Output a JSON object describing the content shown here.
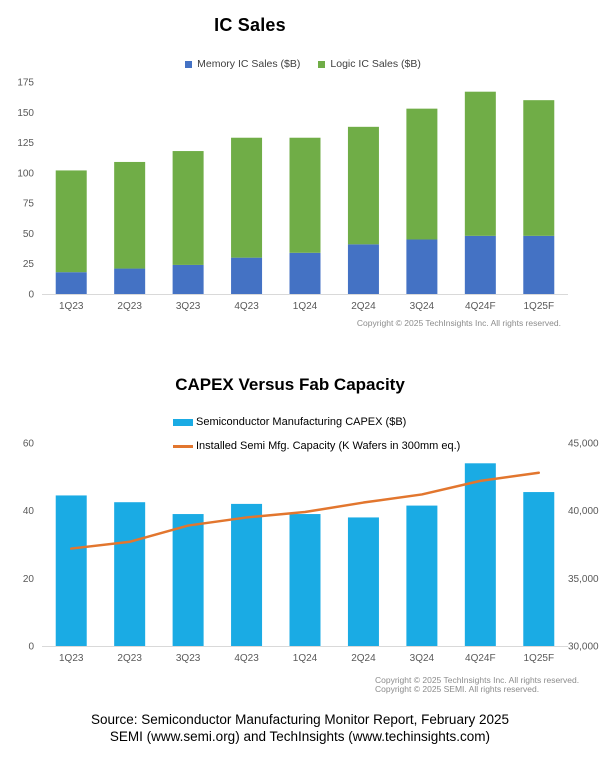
{
  "chart_data": [
    {
      "type": "bar",
      "stacked": true,
      "title": "IC Sales",
      "categories": [
        "1Q23",
        "2Q23",
        "3Q23",
        "4Q23",
        "1Q24",
        "2Q24",
        "3Q24",
        "4Q24F",
        "1Q25F"
      ],
      "series": [
        {
          "key": "memory",
          "name": "Memory IC Sales ($B)",
          "color": "#4472C4",
          "values": [
            18,
            21,
            24,
            30,
            34,
            41,
            45,
            48,
            48
          ]
        },
        {
          "key": "logic",
          "name": "Logic IC Sales ($B)",
          "color": "#70AD47",
          "values": [
            84,
            88,
            94,
            99,
            95,
            97,
            108,
            119,
            112
          ]
        }
      ],
      "xlabel": "",
      "ylabel": "",
      "ylim": [
        0,
        175
      ],
      "yticks": [
        0,
        25,
        50,
        75,
        100,
        125,
        150,
        175
      ],
      "grid": false,
      "legend_position": "top-center",
      "copyright": "Copyright © 2025 TechInsights Inc.  All rights reserved."
    },
    {
      "type": "bar+line",
      "title": "CAPEX Versus Fab Capacity",
      "categories": [
        "1Q23",
        "2Q23",
        "3Q23",
        "4Q23",
        "1Q24",
        "2Q24",
        "3Q24",
        "4Q24F",
        "1Q25F"
      ],
      "series": [
        {
          "key": "capex",
          "name": "Semiconductor Manufacturing CAPEX ($B)",
          "chart": "bar",
          "axis": "left",
          "color": "#1AABE4",
          "values": [
            44.5,
            42.5,
            39,
            42,
            39,
            38,
            41.5,
            54,
            45.5
          ]
        },
        {
          "key": "capacity",
          "name": "Installed Semi Mfg. Capacity (K Wafers in 300mm eq.)",
          "chart": "line",
          "axis": "right",
          "color": "#E2762E",
          "values": [
            37200,
            37700,
            38900,
            39500,
            39900,
            40600,
            41200,
            42200,
            42800
          ]
        }
      ],
      "ylim_left": [
        0,
        60
      ],
      "yticks_left": [
        "0",
        "20",
        "40",
        "60"
      ],
      "ylim_right": [
        30000,
        45000
      ],
      "yticks_right": [
        "30,000",
        "35,000",
        "40,000",
        "45,000"
      ],
      "grid": false,
      "legend_position": "top-left",
      "copyright_lines": [
        "Copyright © 2025 TechInsights Inc.  All rights reserved.",
        "Copyright © 2025 SEMI.  All rights reserved."
      ]
    }
  ],
  "footer": {
    "source_line1": "Source: Semiconductor Manufacturing Monitor Report, February 2025",
    "source_line2": "SEMI (www.semi.org) and TechInsights (www.techinsights.com)"
  }
}
